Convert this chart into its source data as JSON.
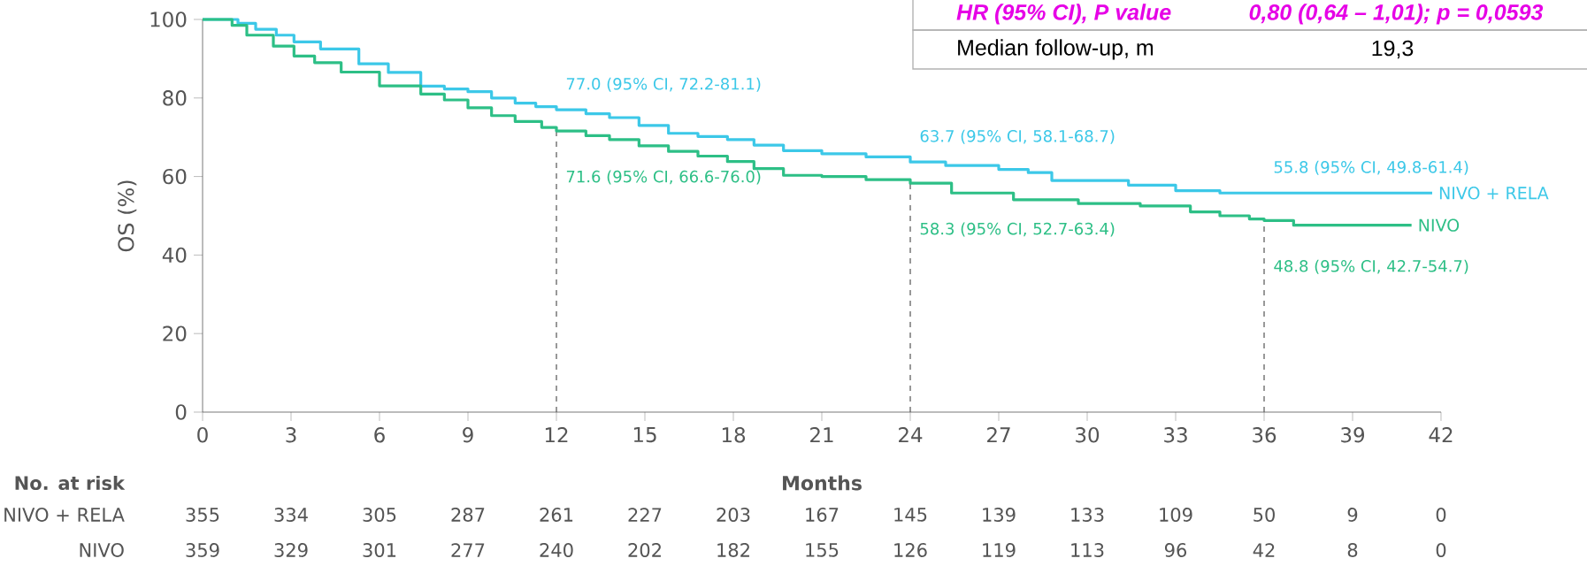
{
  "chart_data": {
    "type": "step",
    "xlabel": "Months",
    "ylabel": "OS (%)",
    "xlim": [
      0,
      42
    ],
    "ylim": [
      0,
      100
    ],
    "xticks": [
      0,
      3,
      6,
      9,
      12,
      15,
      18,
      21,
      24,
      27,
      30,
      33,
      36,
      39,
      42
    ],
    "yticks": [
      0,
      20,
      40,
      60,
      80,
      100
    ],
    "grid": false,
    "legend": false,
    "line_style": "solid",
    "series": [
      {
        "name": "NIVO + RELA",
        "color": "#3cc8e8",
        "x": [
          0,
          1.2,
          1.8,
          2.5,
          3.1,
          4,
          5.3,
          6.3,
          7.4,
          8.2,
          9,
          9.8,
          10.6,
          11.3,
          12,
          13,
          13.8,
          14.8,
          15.8,
          16.8,
          17.8,
          18.7,
          19.7,
          21,
          22.5,
          24,
          25.2,
          27,
          28,
          28.8,
          31.4,
          33,
          34.5,
          41.7
        ],
        "values": [
          100,
          99,
          97.5,
          96,
          94.3,
          92.5,
          88.7,
          86.5,
          83,
          82.3,
          81.6,
          80,
          78.7,
          77.8,
          77.0,
          76,
          75,
          73,
          71,
          70.2,
          69.4,
          68,
          66.6,
          65.8,
          65,
          63.7,
          62.8,
          61.8,
          61,
          59,
          57.8,
          56.4,
          55.8,
          55.8
        ]
      },
      {
        "name": "NIVO",
        "color": "#2dbf86",
        "x": [
          0,
          1,
          1.5,
          2.4,
          3.1,
          3.8,
          4.7,
          6,
          7.4,
          8.2,
          9,
          9.8,
          10.6,
          11.5,
          12,
          13,
          13.8,
          14.8,
          15.8,
          16.8,
          17.8,
          18.7,
          19.7,
          21,
          22.5,
          24,
          25.4,
          27.5,
          29.7,
          31.8,
          33.5,
          34.5,
          35.5,
          36,
          37,
          41
        ],
        "values": [
          100,
          98.5,
          96,
          93.2,
          90.7,
          89,
          86.6,
          83.1,
          81,
          79.5,
          77.5,
          75.5,
          74,
          72.5,
          71.6,
          70.4,
          69.4,
          67.8,
          66.4,
          65.2,
          63.8,
          62,
          60.3,
          60,
          59.2,
          58.3,
          55.8,
          54.1,
          53.1,
          52.5,
          51,
          50,
          49.2,
          48.8,
          47.6,
          47.6
        ]
      }
    ],
    "ref_lines": [
      {
        "axis": "x",
        "value": 12,
        "line_style": "dashed",
        "color": "#555555"
      },
      {
        "axis": "x",
        "value": 24,
        "line_style": "dashed",
        "color": "#555555"
      },
      {
        "axis": "x",
        "value": 36,
        "line_style": "dashed",
        "color": "#555555"
      }
    ],
    "annotations": [
      {
        "text": "77.0 (95% CI, 72.2-81.1)",
        "x": 12,
        "y": 77.0
      },
      {
        "text": "71.6 (95% CI, 66.6-76.0)",
        "x": 12,
        "y": 71.6
      },
      {
        "text": "63.7 (95% CI, 58.1-68.7)",
        "x": 24,
        "y": 63.7
      },
      {
        "text": "58.3 (95% CI, 52.7-63.4)",
        "x": 24,
        "y": 58.3
      },
      {
        "text": "55.8 (95% CI, 49.8-61.4)",
        "x": 36,
        "y": 55.8
      },
      {
        "text": "48.8 (95% CI, 42.7-54.7)",
        "x": 36,
        "y": 48.8
      },
      "HR (95% CI), P value",
      "0,80 (0,64 – 1,01); p = 0,0593",
      "Median follow-up, m",
      "19,3",
      "No. at risk",
      "NIVO + RELA",
      "355",
      "334",
      "305",
      "287",
      "261",
      "227",
      "203",
      "167",
      "145",
      "139",
      "133",
      "109",
      "50",
      "9",
      "0",
      "NIVO",
      "359",
      "329",
      "301",
      "277",
      "240",
      "202",
      "182",
      "155",
      "126",
      "119",
      "113",
      "96",
      "42",
      "8",
      "0"
    ]
  }
}
